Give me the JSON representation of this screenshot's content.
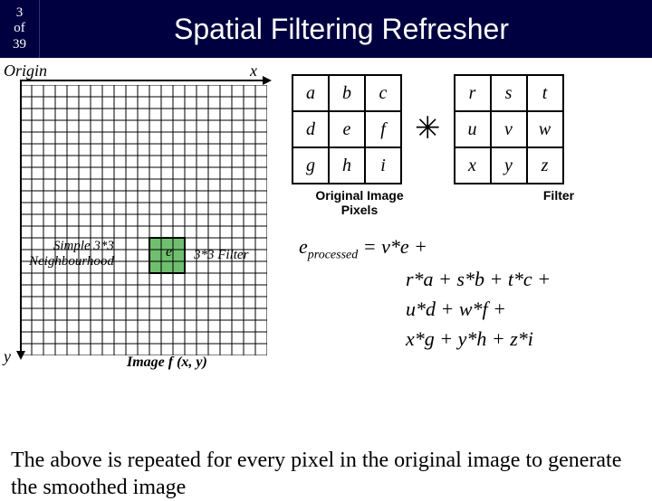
{
  "header": {
    "page_current": "3",
    "page_of": "of",
    "page_total": "39",
    "title": "Spatial Filtering Refresher"
  },
  "labels": {
    "origin": "Origin",
    "x": "x",
    "y": "y",
    "neighbourhood_l1": "Simple 3*3",
    "neighbourhood_l2": "Neighbourhood",
    "filter_small": "3*3 Filter",
    "e_center": "e",
    "image_f": "Image f (x, y)",
    "orig_pixels_l1": "Original Image",
    "orig_pixels_l2": "Pixels",
    "filter": "Filter"
  },
  "grid": {
    "cols": 21,
    "rows": 23,
    "cell": 13,
    "highlight": {
      "col": 11,
      "row": 13,
      "span": 3,
      "color": "#6fbf6f"
    }
  },
  "matrix_pixels": [
    [
      "a",
      "b",
      "c"
    ],
    [
      "d",
      "e",
      "f"
    ],
    [
      "g",
      "h",
      "i"
    ]
  ],
  "matrix_filter": [
    [
      "r",
      "s",
      "t"
    ],
    [
      "u",
      "v",
      "w"
    ],
    [
      "x",
      "y",
      "z"
    ]
  ],
  "conv_symbol": "✳",
  "equation": {
    "lhs_var": "e",
    "lhs_sub": "processed",
    "lines": [
      "= v*e +",
      "r*a + s*b + t*c +",
      "u*d + w*f +",
      "x*g + y*h + z*i"
    ]
  },
  "footer": "The above is repeated for every pixel in the original image to generate the smoothed image",
  "colors": {
    "header_bg": "#000040",
    "grid_line": "#000000",
    "highlight": "#6fbf6f"
  }
}
